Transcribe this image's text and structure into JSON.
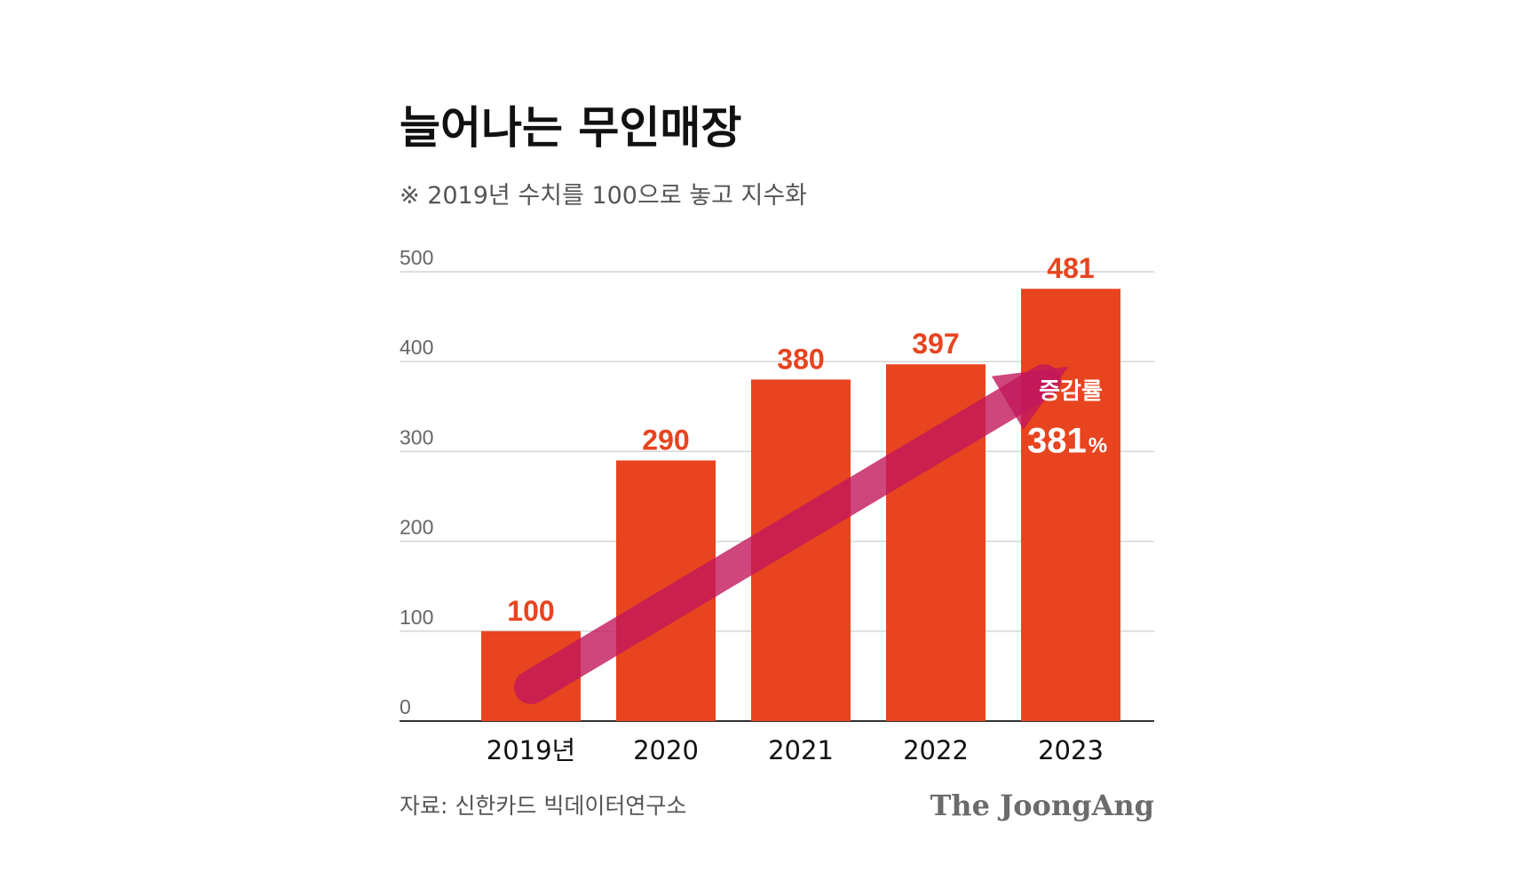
{
  "chart_data": {
    "type": "bar",
    "title": "늘어나는 무인매장",
    "subtitle": "※ 2019년 수치를 100으로 놓고 지수화",
    "categories": [
      "2019년",
      "2020",
      "2021",
      "2022",
      "2023"
    ],
    "values": [
      100,
      290,
      380,
      397,
      481
    ],
    "data_labels": [
      "100",
      "290",
      "380",
      "397",
      "481"
    ],
    "ylim": [
      0,
      500
    ],
    "yticks": [
      0,
      100,
      200,
      300,
      400,
      500
    ],
    "ytick_labels": [
      "0",
      "100",
      "200",
      "300",
      "400",
      "500"
    ],
    "grid": true,
    "annotation": {
      "label": "증감률",
      "value": "381",
      "unit": "%"
    },
    "source": "자료: 신한카드 빅데이터연구소",
    "brand": "The JoongAng",
    "colors": {
      "bar": "#e8441f",
      "data_label": "#e8441f",
      "arrow": "#c2185b",
      "grid": "#d6d6d6",
      "axis": "#333333"
    }
  }
}
